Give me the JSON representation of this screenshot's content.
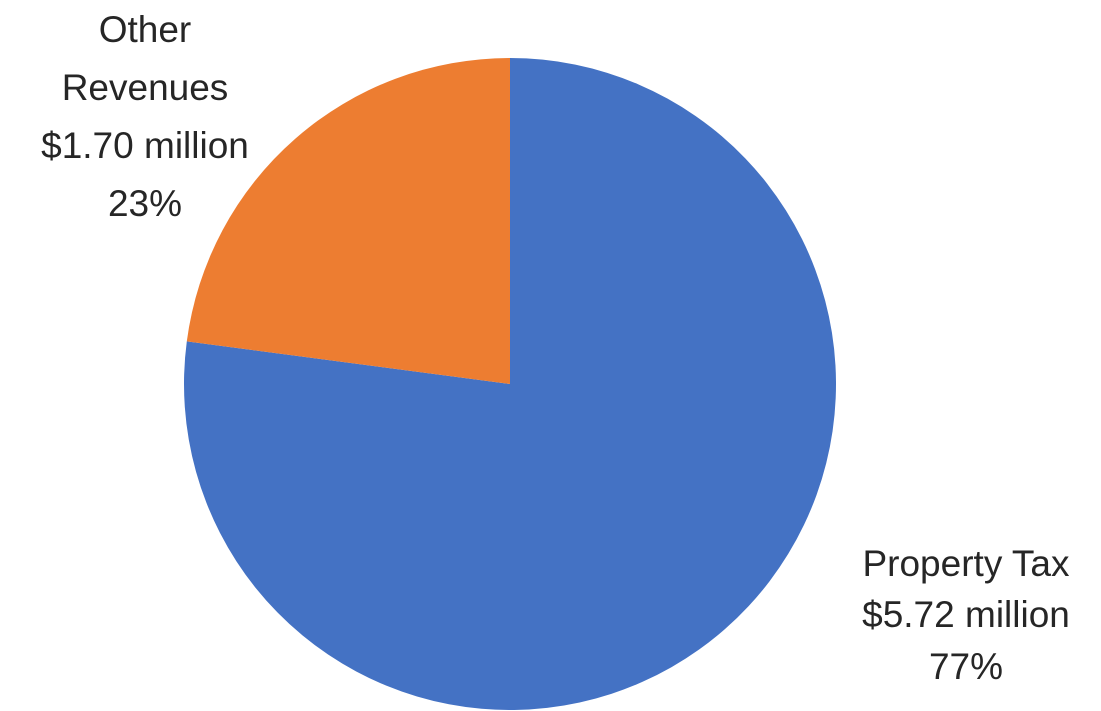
{
  "chart_data": {
    "type": "pie",
    "title": "",
    "slices": [
      {
        "category": "Property Tax",
        "value": 5.72,
        "value_label": "$5.72 million",
        "percent_label": "77%",
        "color": "#4472C4"
      },
      {
        "category": "Other Revenues",
        "value": 1.7,
        "value_label": "$1.70 million",
        "percent_label": "23%",
        "color": "#ED7D31"
      }
    ],
    "legend": "none",
    "start_angle_deg": 0,
    "direction": "clockwise"
  }
}
